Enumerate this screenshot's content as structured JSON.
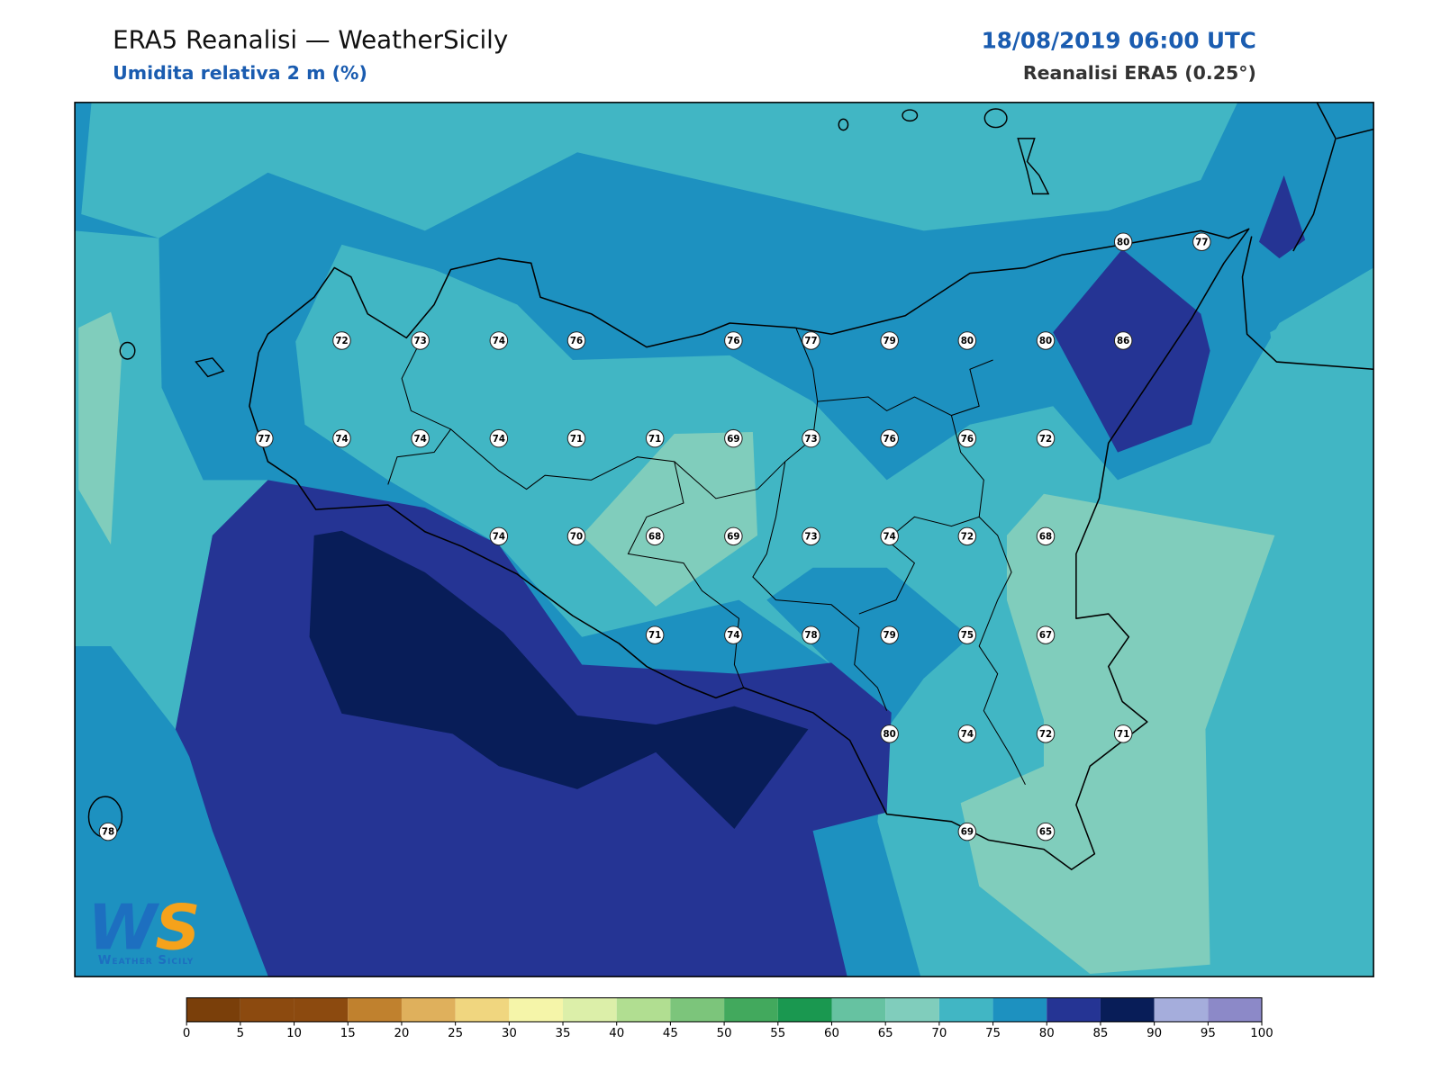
{
  "header": {
    "title": "ERA5 Reanalisi — WeatherSicily",
    "subtitle": "Umidita relativa 2 m (%)",
    "datetime": "18/08/2019 06:00 UTC",
    "source": "Reanalisi ERA5 (0.25°)"
  },
  "stations": [
    80,
    77,
    72,
    73,
    74,
    76,
    76,
    77,
    79,
    80,
    80,
    86,
    77,
    74,
    74,
    74,
    71,
    71,
    69,
    73,
    76,
    76,
    72,
    74,
    70,
    68,
    69,
    73,
    74,
    72,
    68,
    71,
    74,
    78,
    79,
    75,
    67,
    80,
    74,
    72,
    71,
    78,
    69,
    65
  ],
  "colorbar": {
    "range": [
      0,
      100
    ],
    "ticks": [
      0,
      5,
      10,
      15,
      20,
      25,
      30,
      35,
      40,
      45,
      50,
      55,
      60,
      65,
      70,
      75,
      80,
      85,
      90,
      95,
      100
    ],
    "colors": [
      "#7a3f0a",
      "#8c4a0f",
      "#8c4a0f",
      "#c0812e",
      "#dfb05c",
      "#f0d67f",
      "#f5f5a9",
      "#dcefa9",
      "#b1de91",
      "#7cc57b",
      "#42a95d",
      "#1a9850",
      "#66c2a1",
      "#80cdbc",
      "#41b6c4",
      "#1d91c0",
      "#253494",
      "#081d58",
      "#a5addc",
      "#8c89c8"
    ]
  },
  "logo": {
    "letters": [
      "W",
      "S"
    ],
    "text": "Weather Sicily"
  }
}
